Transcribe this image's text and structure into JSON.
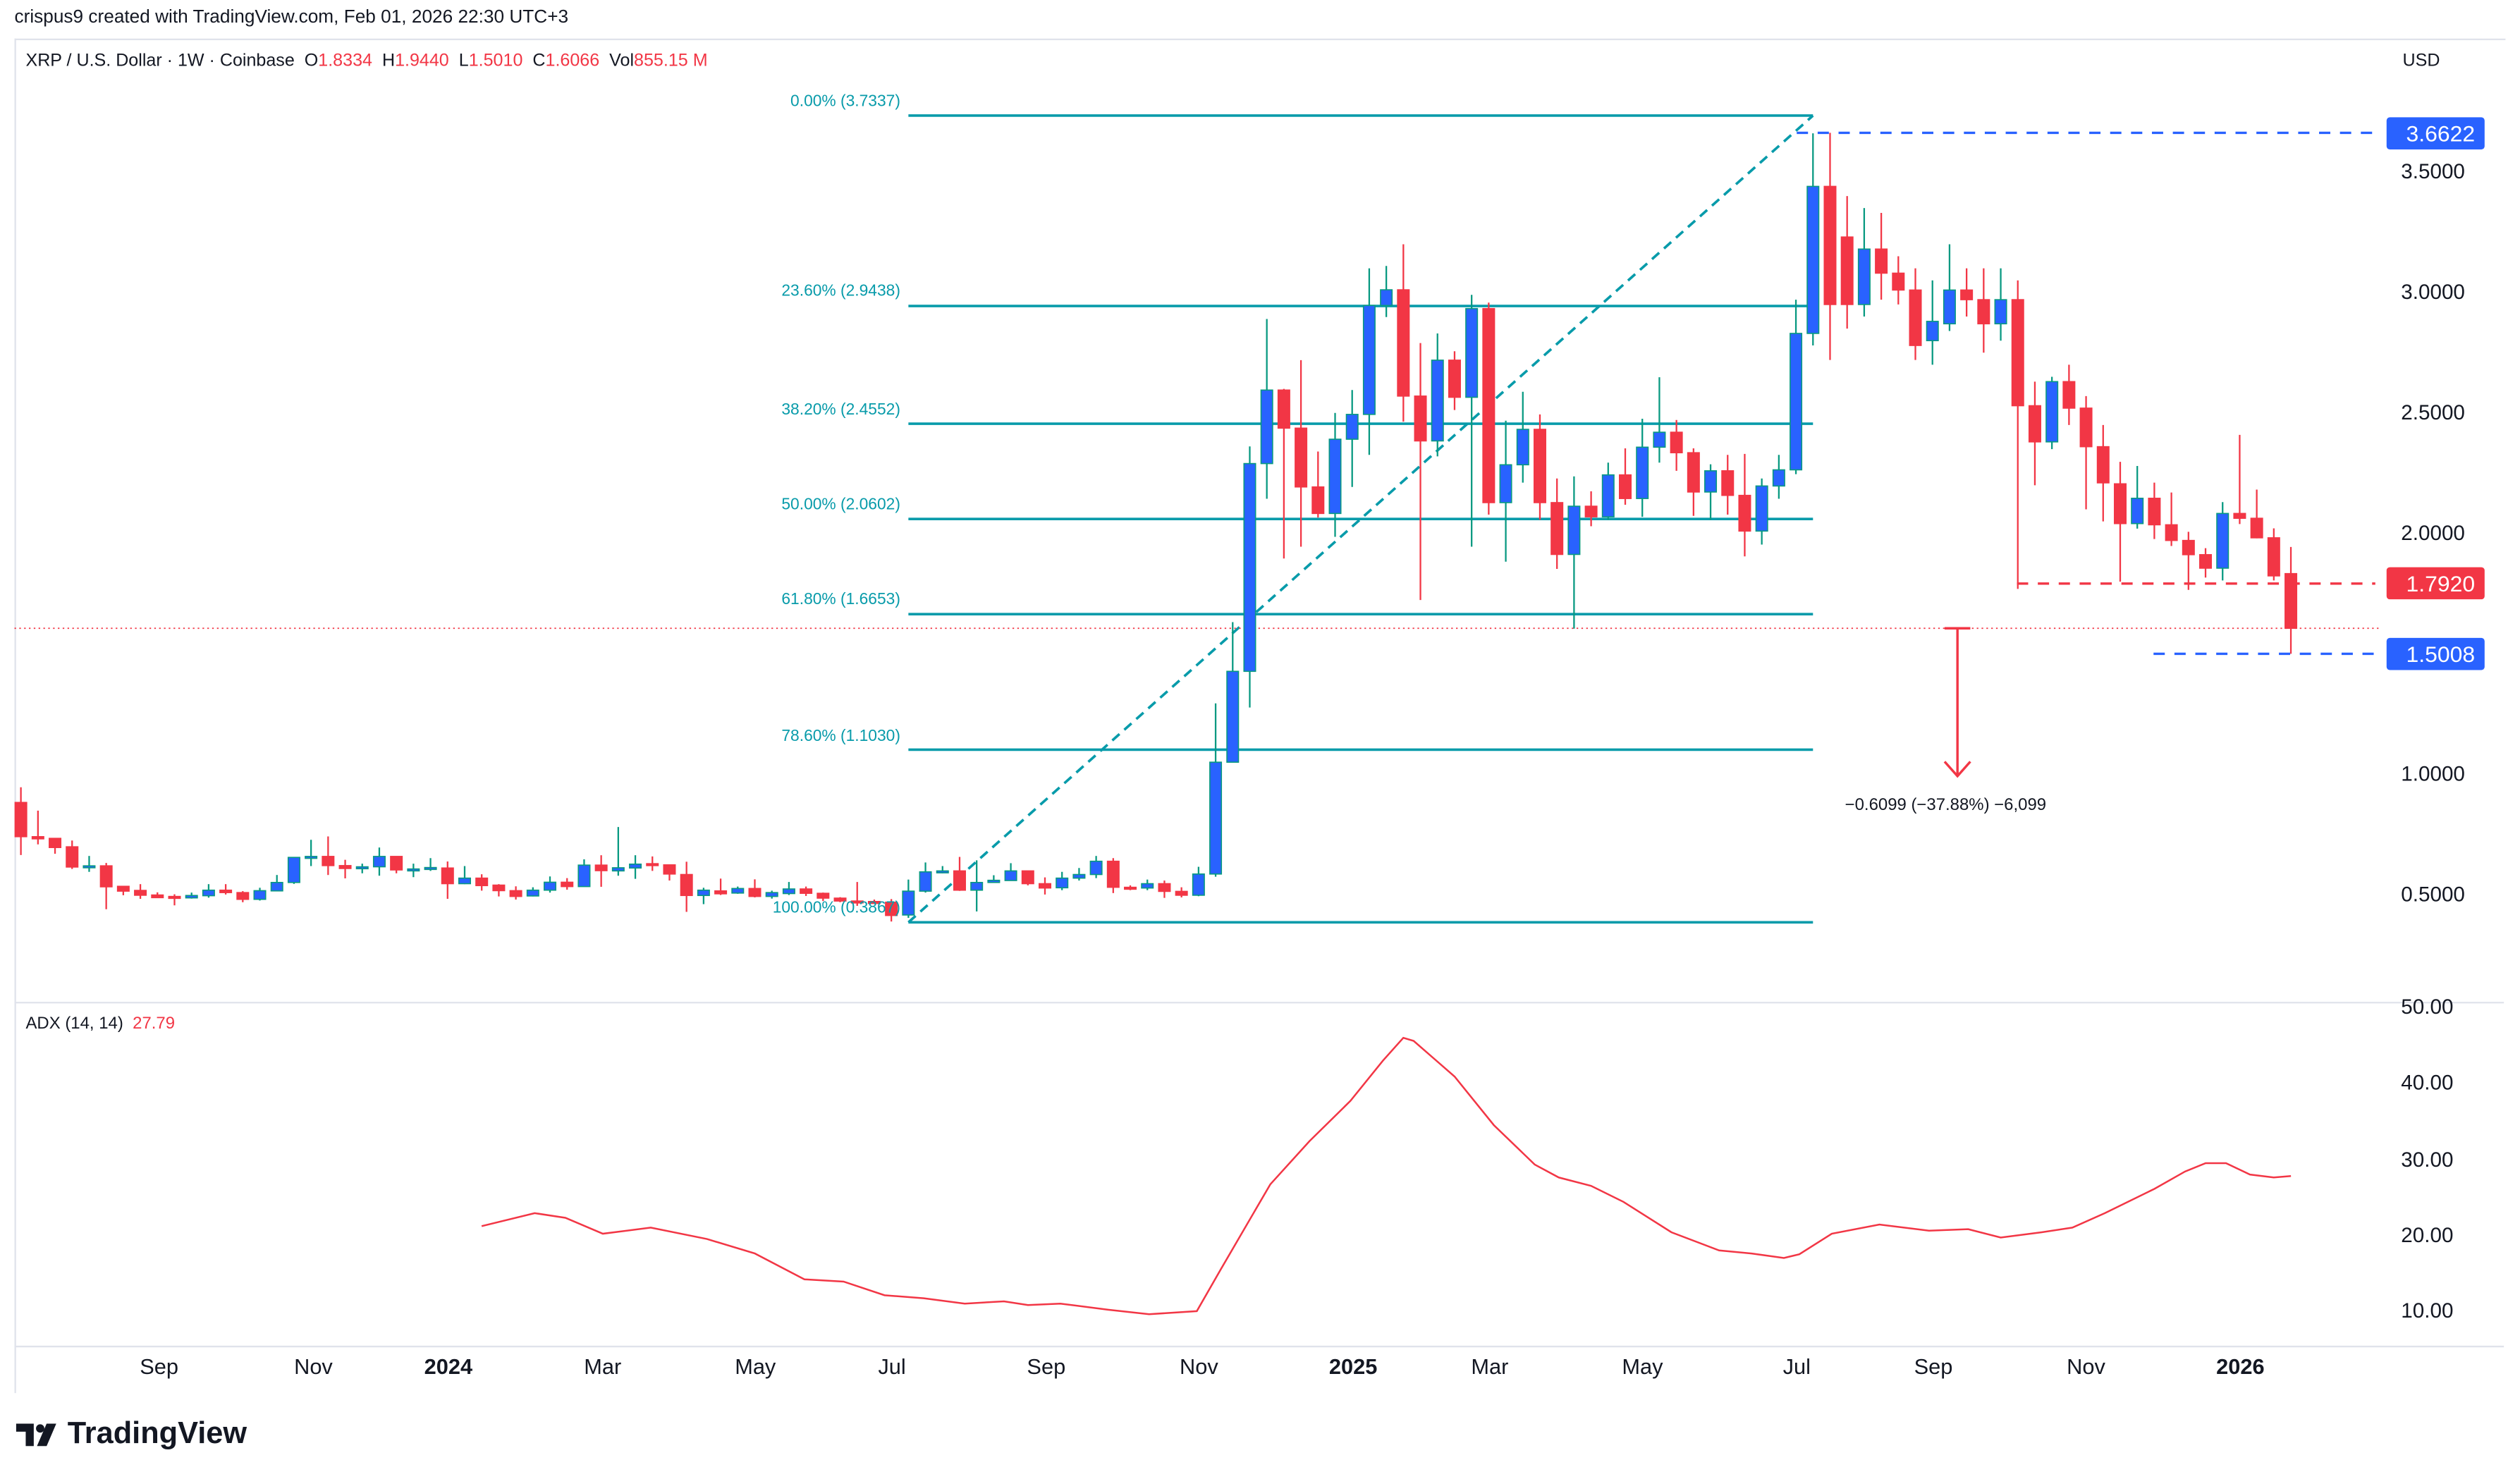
{
  "attribution": "crispus9 created with TradingView.com, Feb 01, 2026 22:30 UTC+3",
  "legend": {
    "symbol": "XRP / U.S. Dollar · 1W · Coinbase",
    "o_label": "O",
    "o": "1.8334",
    "h_label": "H",
    "h": "1.9440",
    "l_label": "L",
    "l": "1.5010",
    "c_label": "C",
    "c": "1.6066",
    "vol_label": "Vol",
    "vol": "855.15 M"
  },
  "currency": "USD",
  "price_axis": [
    "3.5000",
    "3.0000",
    "2.5000",
    "2.0000",
    "1.0000",
    "0.5000"
  ],
  "price_tags": {
    "high": {
      "value": "3.6622",
      "color": "#2962ff"
    },
    "mid": {
      "value": "1.7920",
      "color": "#f23645"
    },
    "low": {
      "value": "1.5008",
      "color": "#2962ff"
    }
  },
  "current_price": 1.6066,
  "fib_levels": [
    {
      "label": "0.00% (3.7337)",
      "value": 3.7337
    },
    {
      "label": "23.60% (2.9438)",
      "value": 2.9438
    },
    {
      "label": "38.20% (2.4552)",
      "value": 2.4552
    },
    {
      "label": "50.00% (2.0602)",
      "value": 2.0602
    },
    {
      "label": "61.80% (1.6653)",
      "value": 1.6653
    },
    {
      "label": "78.60% (1.1030)",
      "value": 1.103
    },
    {
      "label": "100.00% (0.3867)",
      "value": 0.3867
    }
  ],
  "measure_label": "−0.6099 (−37.88%) −6,099",
  "time_axis": [
    {
      "label": "Sep",
      "year": false
    },
    {
      "label": "Nov",
      "year": false
    },
    {
      "label": "2024",
      "year": true
    },
    {
      "label": "Mar",
      "year": false
    },
    {
      "label": "May",
      "year": false
    },
    {
      "label": "Jul",
      "year": false
    },
    {
      "label": "Sep",
      "year": false
    },
    {
      "label": "Nov",
      "year": false
    },
    {
      "label": "2025",
      "year": true
    },
    {
      "label": "Mar",
      "year": false
    },
    {
      "label": "May",
      "year": false
    },
    {
      "label": "Jul",
      "year": false
    },
    {
      "label": "Sep",
      "year": false
    },
    {
      "label": "Nov",
      "year": false
    },
    {
      "label": "2026",
      "year": true
    }
  ],
  "adx": {
    "label": "ADX (14, 14)",
    "value": "27.79",
    "axis": [
      "50.00",
      "40.00",
      "30.00",
      "20.00",
      "10.00"
    ],
    "color": "#f23645",
    "points": [
      [
        27,
        21.2
      ],
      [
        30.1,
        22.9
      ],
      [
        31.9,
        22.3
      ],
      [
        34.1,
        20.2
      ],
      [
        36.9,
        21
      ],
      [
        40.2,
        19.5
      ],
      [
        43,
        17.6
      ],
      [
        45.9,
        14.2
      ],
      [
        48.2,
        13.9
      ],
      [
        50.6,
        12.1
      ],
      [
        52.9,
        11.7
      ],
      [
        55.3,
        11
      ],
      [
        57.6,
        11.3
      ],
      [
        59,
        10.8
      ],
      [
        60.9,
        11
      ],
      [
        63.7,
        10.2
      ],
      [
        66.1,
        9.6
      ],
      [
        68.9,
        10
      ],
      [
        70.3,
        15.5
      ],
      [
        73.2,
        26.7
      ],
      [
        75.5,
        32.4
      ],
      [
        77.9,
        37.7
      ],
      [
        79.8,
        43
      ],
      [
        81,
        46
      ],
      [
        81.6,
        45.6
      ],
      [
        84,
        40.9
      ],
      [
        86.3,
        34.5
      ],
      [
        88.7,
        29.3
      ],
      [
        90.1,
        27.6
      ],
      [
        92,
        26.5
      ],
      [
        93.9,
        24.4
      ],
      [
        96.7,
        20.4
      ],
      [
        99.5,
        18
      ],
      [
        101.4,
        17.6
      ],
      [
        103.3,
        17
      ],
      [
        104.2,
        17.5
      ],
      [
        106.1,
        20.2
      ],
      [
        108.9,
        21.4
      ],
      [
        111.8,
        20.6
      ],
      [
        114.1,
        20.8
      ],
      [
        116,
        19.7
      ],
      [
        118.4,
        20.4
      ],
      [
        120.2,
        21
      ],
      [
        122.1,
        22.9
      ],
      [
        125,
        26.1
      ],
      [
        126.8,
        28.4
      ],
      [
        128,
        29.5
      ],
      [
        129.2,
        29.5
      ],
      [
        130.6,
        28
      ],
      [
        132,
        27.6
      ],
      [
        133,
        27.79
      ]
    ]
  },
  "colors": {
    "up_body": "#2962ff",
    "up_wick": "#089981",
    "down": "#f23645",
    "fib": "#089baa"
  },
  "brand": "TradingView",
  "chart_data": {
    "type": "candlestick",
    "title": "XRP / U.S. Dollar · 1W · Coinbase",
    "ylim": [
      0.2,
      3.9
    ],
    "scale": "linear",
    "fields": [
      "open",
      "high",
      "low",
      "close"
    ],
    "candles": [
      [
        0.884,
        0.947,
        0.666,
        0.742
      ],
      [
        0.742,
        0.85,
        0.71,
        0.733
      ],
      [
        0.735,
        0.737,
        0.671,
        0.697
      ],
      [
        0.7,
        0.726,
        0.608,
        0.616
      ],
      [
        0.618,
        0.662,
        0.596,
        0.621
      ],
      [
        0.621,
        0.633,
        0.441,
        0.534
      ],
      [
        0.536,
        0.536,
        0.499,
        0.516
      ],
      [
        0.519,
        0.545,
        0.484,
        0.499
      ],
      [
        0.5,
        0.511,
        0.488,
        0.489
      ],
      [
        0.494,
        0.503,
        0.457,
        0.488
      ],
      [
        0.488,
        0.51,
        0.485,
        0.498
      ],
      [
        0.497,
        0.545,
        0.489,
        0.52
      ],
      [
        0.52,
        0.545,
        0.502,
        0.51
      ],
      [
        0.51,
        0.516,
        0.47,
        0.482
      ],
      [
        0.482,
        0.53,
        0.477,
        0.518
      ],
      [
        0.517,
        0.583,
        0.517,
        0.552
      ],
      [
        0.552,
        0.656,
        0.546,
        0.656
      ],
      [
        0.656,
        0.729,
        0.62,
        0.66
      ],
      [
        0.66,
        0.743,
        0.583,
        0.622
      ],
      [
        0.622,
        0.646,
        0.569,
        0.61
      ],
      [
        0.61,
        0.63,
        0.59,
        0.617
      ],
      [
        0.617,
        0.697,
        0.58,
        0.66
      ],
      [
        0.66,
        0.66,
        0.59,
        0.604
      ],
      [
        0.604,
        0.63,
        0.574,
        0.608
      ],
      [
        0.61,
        0.653,
        0.6,
        0.614
      ],
      [
        0.612,
        0.639,
        0.484,
        0.547
      ],
      [
        0.547,
        0.62,
        0.545,
        0.57
      ],
      [
        0.57,
        0.586,
        0.518,
        0.539
      ],
      [
        0.541,
        0.545,
        0.494,
        0.518
      ],
      [
        0.518,
        0.536,
        0.481,
        0.494
      ],
      [
        0.496,
        0.532,
        0.494,
        0.52
      ],
      [
        0.52,
        0.577,
        0.51,
        0.553
      ],
      [
        0.553,
        0.57,
        0.522,
        0.535
      ],
      [
        0.535,
        0.648,
        0.535,
        0.624
      ],
      [
        0.624,
        0.665,
        0.534,
        0.601
      ],
      [
        0.6,
        0.782,
        0.58,
        0.613
      ],
      [
        0.612,
        0.665,
        0.567,
        0.628
      ],
      [
        0.63,
        0.66,
        0.6,
        0.625
      ],
      [
        0.625,
        0.625,
        0.56,
        0.587
      ],
      [
        0.585,
        0.638,
        0.43,
        0.498
      ],
      [
        0.498,
        0.53,
        0.462,
        0.52
      ],
      [
        0.517,
        0.568,
        0.5,
        0.505
      ],
      [
        0.508,
        0.535,
        0.505,
        0.527
      ],
      [
        0.527,
        0.565,
        0.49,
        0.494
      ],
      [
        0.494,
        0.518,
        0.485,
        0.51
      ],
      [
        0.506,
        0.554,
        0.5,
        0.525
      ],
      [
        0.525,
        0.535,
        0.496,
        0.507
      ],
      [
        0.507,
        0.51,
        0.475,
        0.487
      ],
      [
        0.487,
        0.491,
        0.47,
        0.475
      ],
      [
        0.475,
        0.554,
        0.455,
        0.47
      ],
      [
        0.473,
        0.481,
        0.47,
        0.472
      ],
      [
        0.47,
        0.483,
        0.39,
        0.415
      ],
      [
        0.417,
        0.564,
        0.405,
        0.516
      ],
      [
        0.516,
        0.635,
        0.51,
        0.596
      ],
      [
        0.596,
        0.62,
        0.59,
        0.6
      ],
      [
        0.6,
        0.658,
        0.517,
        0.52
      ],
      [
        0.52,
        0.644,
        0.432,
        0.552
      ],
      [
        0.552,
        0.582,
        0.55,
        0.561
      ],
      [
        0.56,
        0.632,
        0.56,
        0.6
      ],
      [
        0.6,
        0.6,
        0.54,
        0.547
      ],
      [
        0.547,
        0.573,
        0.502,
        0.529
      ],
      [
        0.53,
        0.596,
        0.52,
        0.57
      ],
      [
        0.57,
        0.612,
        0.56,
        0.585
      ],
      [
        0.585,
        0.662,
        0.57,
        0.64
      ],
      [
        0.64,
        0.653,
        0.508,
        0.532
      ],
      [
        0.532,
        0.54,
        0.52,
        0.53
      ],
      [
        0.529,
        0.564,
        0.52,
        0.547
      ],
      [
        0.547,
        0.56,
        0.488,
        0.515
      ],
      [
        0.515,
        0.532,
        0.49,
        0.499
      ],
      [
        0.499,
        0.617,
        0.495,
        0.587
      ],
      [
        0.587,
        1.295,
        0.576,
        1.051
      ],
      [
        1.051,
        1.632,
        1.051,
        1.428
      ],
      [
        1.428,
        2.361,
        1.278,
        2.29
      ],
      [
        2.29,
        2.89,
        2.144,
        2.595
      ],
      [
        2.595,
        2.6,
        1.896,
        2.437
      ],
      [
        2.437,
        2.719,
        1.945,
        2.193
      ],
      [
        2.193,
        2.34,
        2.066,
        2.083
      ],
      [
        2.083,
        2.5,
        1.986,
        2.391
      ],
      [
        2.391,
        2.595,
        2.193,
        2.494
      ],
      [
        2.494,
        3.1,
        2.326,
        2.946
      ],
      [
        2.946,
        3.11,
        2.898,
        3.011
      ],
      [
        3.011,
        3.2,
        2.464,
        2.57
      ],
      [
        2.57,
        2.79,
        1.724,
        2.384
      ],
      [
        2.384,
        2.83,
        2.32,
        2.719
      ],
      [
        2.719,
        2.756,
        2.512,
        2.565
      ],
      [
        2.565,
        2.99,
        1.945,
        2.933
      ],
      [
        2.933,
        2.958,
        2.078,
        2.128
      ],
      [
        2.128,
        2.468,
        1.883,
        2.285
      ],
      [
        2.285,
        2.588,
        2.211,
        2.432
      ],
      [
        2.432,
        2.494,
        2.057,
        2.128
      ],
      [
        2.128,
        2.228,
        1.853,
        1.913
      ],
      [
        1.913,
        2.237,
        1.605,
        2.113
      ],
      [
        2.113,
        2.175,
        2.03,
        2.069
      ],
      [
        2.069,
        2.294,
        2.057,
        2.243
      ],
      [
        2.243,
        2.353,
        2.119,
        2.145
      ],
      [
        2.145,
        2.476,
        2.069,
        2.358
      ],
      [
        2.358,
        2.648,
        2.294,
        2.42
      ],
      [
        2.42,
        2.471,
        2.26,
        2.335
      ],
      [
        2.335,
        2.353,
        2.073,
        2.172
      ],
      [
        2.172,
        2.287,
        2.057,
        2.26
      ],
      [
        2.26,
        2.326,
        2.078,
        2.158
      ],
      [
        2.158,
        2.33,
        1.905,
        2.01
      ],
      [
        2.01,
        2.228,
        1.954,
        2.197
      ],
      [
        2.197,
        2.326,
        2.144,
        2.264
      ],
      [
        2.264,
        2.97,
        2.246,
        2.83
      ],
      [
        2.83,
        3.66,
        2.78,
        3.44
      ],
      [
        3.44,
        3.6622,
        2.72,
        2.95
      ],
      [
        3.23,
        3.4,
        2.85,
        2.95
      ],
      [
        2.95,
        3.35,
        2.9,
        3.18
      ],
      [
        3.18,
        3.33,
        2.97,
        3.08
      ],
      [
        3.08,
        3.15,
        2.95,
        3.01
      ],
      [
        3.01,
        3.1,
        2.72,
        2.78
      ],
      [
        2.8,
        3.05,
        2.7,
        2.88
      ],
      [
        2.87,
        3.2,
        2.84,
        3.01
      ],
      [
        3.01,
        3.1,
        2.9,
        2.97
      ],
      [
        2.97,
        3.1,
        2.75,
        2.87
      ],
      [
        2.87,
        3.1,
        2.8,
        2.97
      ],
      [
        2.97,
        3.05,
        1.77,
        2.53
      ],
      [
        2.53,
        2.63,
        2.2,
        2.38
      ],
      [
        2.38,
        2.65,
        2.35,
        2.63
      ],
      [
        2.63,
        2.7,
        2.45,
        2.52
      ],
      [
        2.52,
        2.57,
        2.1,
        2.36
      ],
      [
        2.36,
        2.45,
        2.05,
        2.21
      ],
      [
        2.206,
        2.297,
        1.8,
        2.041
      ],
      [
        2.041,
        2.28,
        2.02,
        2.146
      ],
      [
        2.146,
        2.211,
        1.977,
        2.036
      ],
      [
        2.036,
        2.17,
        1.948,
        1.971
      ],
      [
        1.971,
        2.007,
        1.766,
        1.912
      ],
      [
        1.912,
        1.939,
        1.817,
        1.856
      ],
      [
        1.856,
        2.13,
        1.805,
        2.083
      ],
      [
        2.083,
        2.409,
        2.039,
        2.063
      ],
      [
        2.063,
        2.182,
        1.98,
        1.982
      ],
      [
        1.982,
        2.021,
        1.805,
        1.824
      ],
      [
        1.8334,
        1.944,
        1.501,
        1.6066
      ]
    ]
  }
}
